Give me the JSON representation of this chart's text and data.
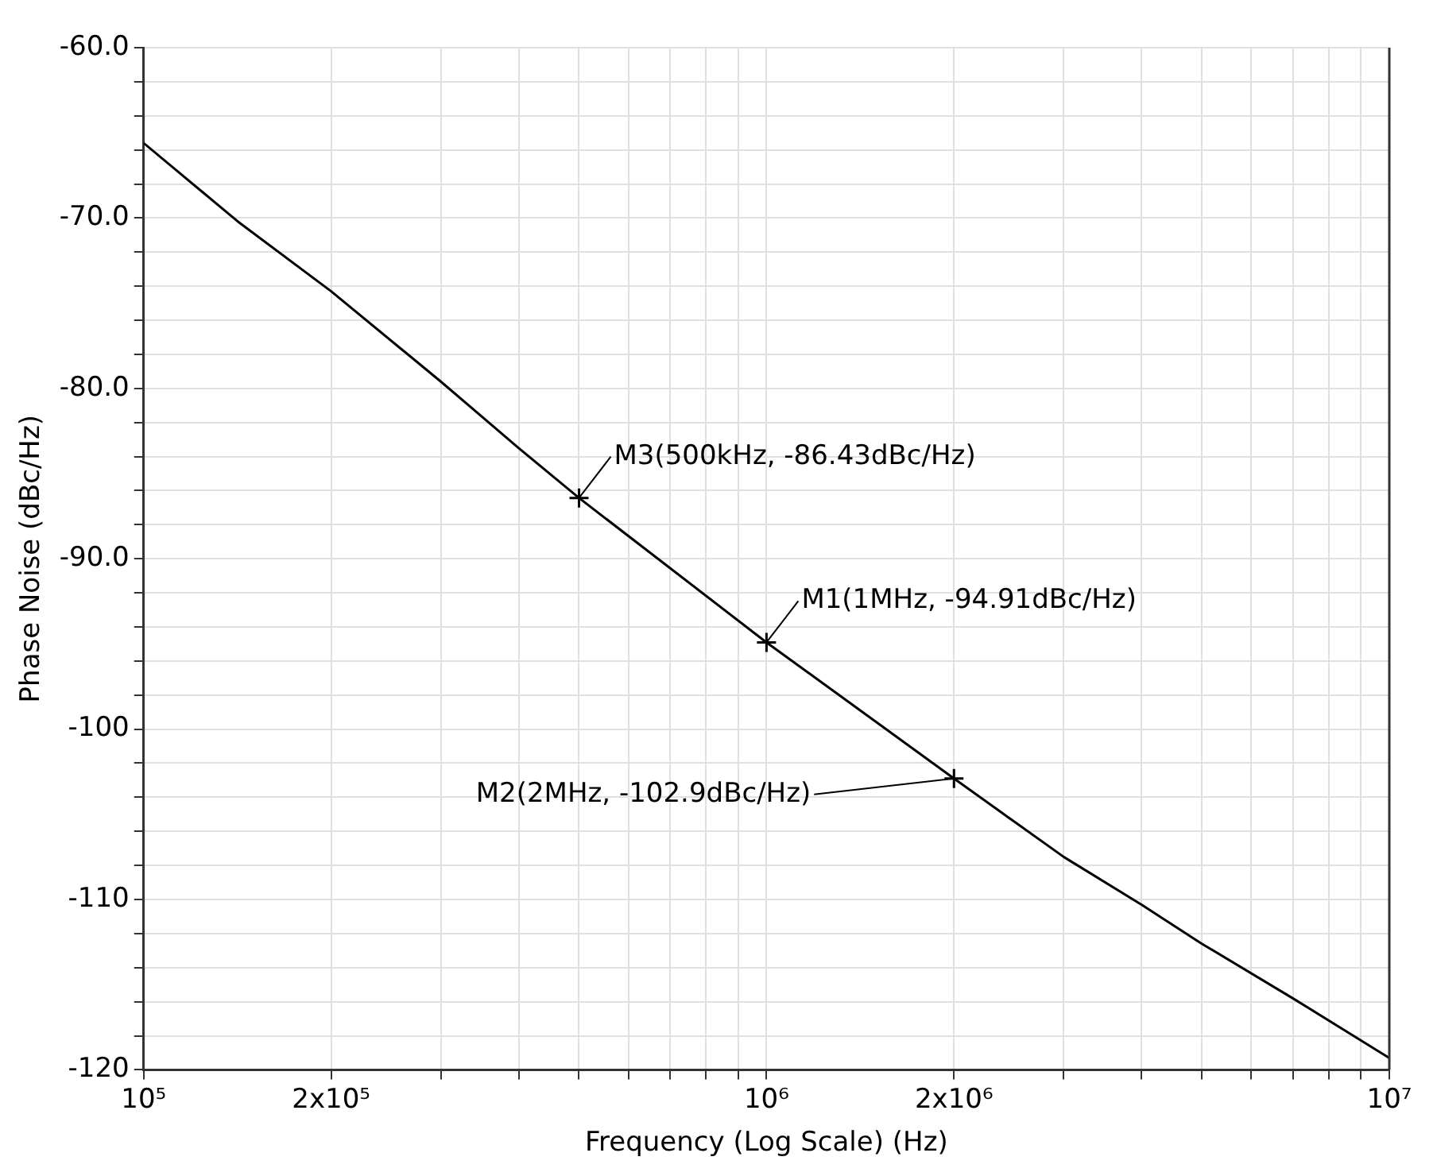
{
  "chart_data": {
    "type": "line",
    "xlabel": "Frequency (Log Scale) (Hz)",
    "ylabel": "Phase Noise (dBc/Hz)",
    "log": "x",
    "grid": true,
    "legend": false,
    "xlim": [
      100000,
      10000000
    ],
    "xticks": [
      {
        "value": 100000,
        "label": "10⁵"
      },
      {
        "value": 200000,
        "label": "2x10⁵"
      },
      {
        "value": 300000,
        "label": null
      },
      {
        "value": 400000,
        "label": null
      },
      {
        "value": 500000,
        "label": null
      },
      {
        "value": 600000,
        "label": null
      },
      {
        "value": 700000,
        "label": null
      },
      {
        "value": 800000,
        "label": null
      },
      {
        "value": 900000,
        "label": null
      },
      {
        "value": 1000000,
        "label": "10⁶"
      },
      {
        "value": 2000000,
        "label": "2x10⁶"
      },
      {
        "value": 3000000,
        "label": null
      },
      {
        "value": 4000000,
        "label": null
      },
      {
        "value": 5000000,
        "label": null
      },
      {
        "value": 6000000,
        "label": null
      },
      {
        "value": 7000000,
        "label": null
      },
      {
        "value": 8000000,
        "label": null
      },
      {
        "value": 9000000,
        "label": null
      },
      {
        "value": 10000000,
        "label": "10⁷"
      }
    ],
    "ylim": [
      -120,
      -60
    ],
    "yticks": [
      {
        "value": -60,
        "label": "-60.0"
      },
      {
        "value": -62,
        "label": null
      },
      {
        "value": -64,
        "label": null
      },
      {
        "value": -66,
        "label": null
      },
      {
        "value": -68,
        "label": null
      },
      {
        "value": -70,
        "label": "-70.0"
      },
      {
        "value": -72,
        "label": null
      },
      {
        "value": -74,
        "label": null
      },
      {
        "value": -76,
        "label": null
      },
      {
        "value": -78,
        "label": null
      },
      {
        "value": -80,
        "label": "-80.0"
      },
      {
        "value": -82,
        "label": null
      },
      {
        "value": -84,
        "label": null
      },
      {
        "value": -86,
        "label": null
      },
      {
        "value": -88,
        "label": null
      },
      {
        "value": -90,
        "label": "-90.0"
      },
      {
        "value": -92,
        "label": null
      },
      {
        "value": -94,
        "label": null
      },
      {
        "value": -96,
        "label": null
      },
      {
        "value": -98,
        "label": null
      },
      -100,
      {
        "value": -102,
        "label": null
      },
      {
        "value": -104,
        "label": null
      },
      {
        "value": -106,
        "label": null
      },
      {
        "value": -108,
        "label": null
      },
      -110,
      {
        "value": -112,
        "label": null
      },
      {
        "value": -114,
        "label": null
      },
      {
        "value": -116,
        "label": null
      },
      {
        "value": -118,
        "label": null
      },
      -120
    ],
    "series": [
      {
        "type": "line",
        "color": "#000000",
        "marker": "none",
        "x": [
          100000,
          141600,
          200000,
          300000,
          400000,
          500000,
          1000000,
          2000000,
          3000000,
          4000000,
          5000000,
          7000000,
          10000000
        ],
        "values": [
          -65.6,
          -70.2,
          -74.3,
          -79.6,
          -83.5,
          -86.43,
          -94.91,
          -102.9,
          -107.5,
          -110.3,
          -112.6,
          -115.8,
          -119.3
        ]
      },
      {
        "type": "scatter",
        "color": "#000000",
        "marker": "cross",
        "x": [
          500000,
          1000000,
          2000000
        ],
        "values": [
          -86.43,
          -94.91,
          -102.9
        ]
      }
    ],
    "annotations": [
      {
        "text": "M3(500kHz, -86.43dBc/Hz)",
        "x": 500000,
        "y": -86.43
      },
      {
        "text": "M1(1MHz, -94.91dBc/Hz)",
        "x": 1000000,
        "y": -94.91
      },
      {
        "text": "M2(2MHz, -102.9dBc/Hz)",
        "x": 2000000,
        "y": -102.9
      }
    ]
  }
}
